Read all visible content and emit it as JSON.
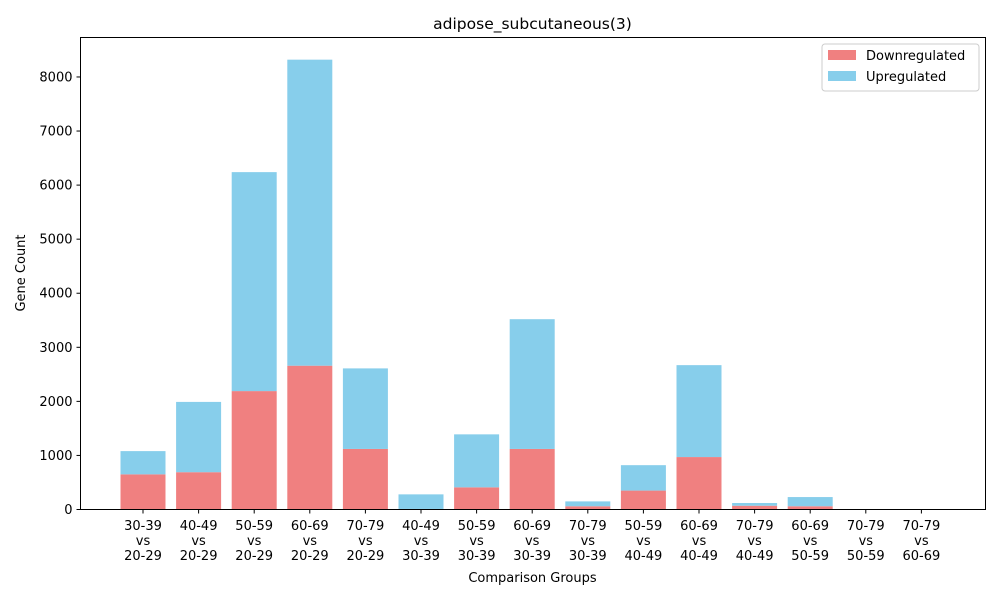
{
  "chart_data": {
    "type": "bar",
    "stacked": true,
    "title": "adipose_subcutaneous(3)",
    "xlabel": "Comparison Groups",
    "ylabel": "Gene Count",
    "ylim": [
      0,
      8730
    ],
    "yticks": [
      0,
      1000,
      2000,
      3000,
      4000,
      5000,
      6000,
      7000,
      8000
    ],
    "grid": false,
    "legend_position": "top-right",
    "categories": [
      [
        "30-39",
        "vs",
        "20-29"
      ],
      [
        "40-49",
        "vs",
        "20-29"
      ],
      [
        "50-59",
        "vs",
        "20-29"
      ],
      [
        "60-69",
        "vs",
        "20-29"
      ],
      [
        "70-79",
        "vs",
        "20-29"
      ],
      [
        "40-49",
        "vs",
        "30-39"
      ],
      [
        "50-59",
        "vs",
        "30-39"
      ],
      [
        "60-69",
        "vs",
        "30-39"
      ],
      [
        "70-79",
        "vs",
        "30-39"
      ],
      [
        "50-59",
        "vs",
        "40-49"
      ],
      [
        "60-69",
        "vs",
        "40-49"
      ],
      [
        "70-79",
        "vs",
        "40-49"
      ],
      [
        "60-69",
        "vs",
        "50-59"
      ],
      [
        "70-79",
        "vs",
        "50-59"
      ],
      [
        "70-79",
        "vs",
        "60-69"
      ]
    ],
    "series": [
      {
        "name": "Downregulated",
        "color": "#f08080",
        "values": [
          650,
          690,
          2190,
          2660,
          1120,
          10,
          410,
          1120,
          60,
          350,
          970,
          70,
          60,
          0,
          0
        ]
      },
      {
        "name": "Upregulated",
        "color": "#87ceeb",
        "values": [
          430,
          1300,
          4050,
          5660,
          1490,
          270,
          980,
          2400,
          90,
          470,
          1700,
          50,
          170,
          0,
          0
        ]
      }
    ]
  }
}
